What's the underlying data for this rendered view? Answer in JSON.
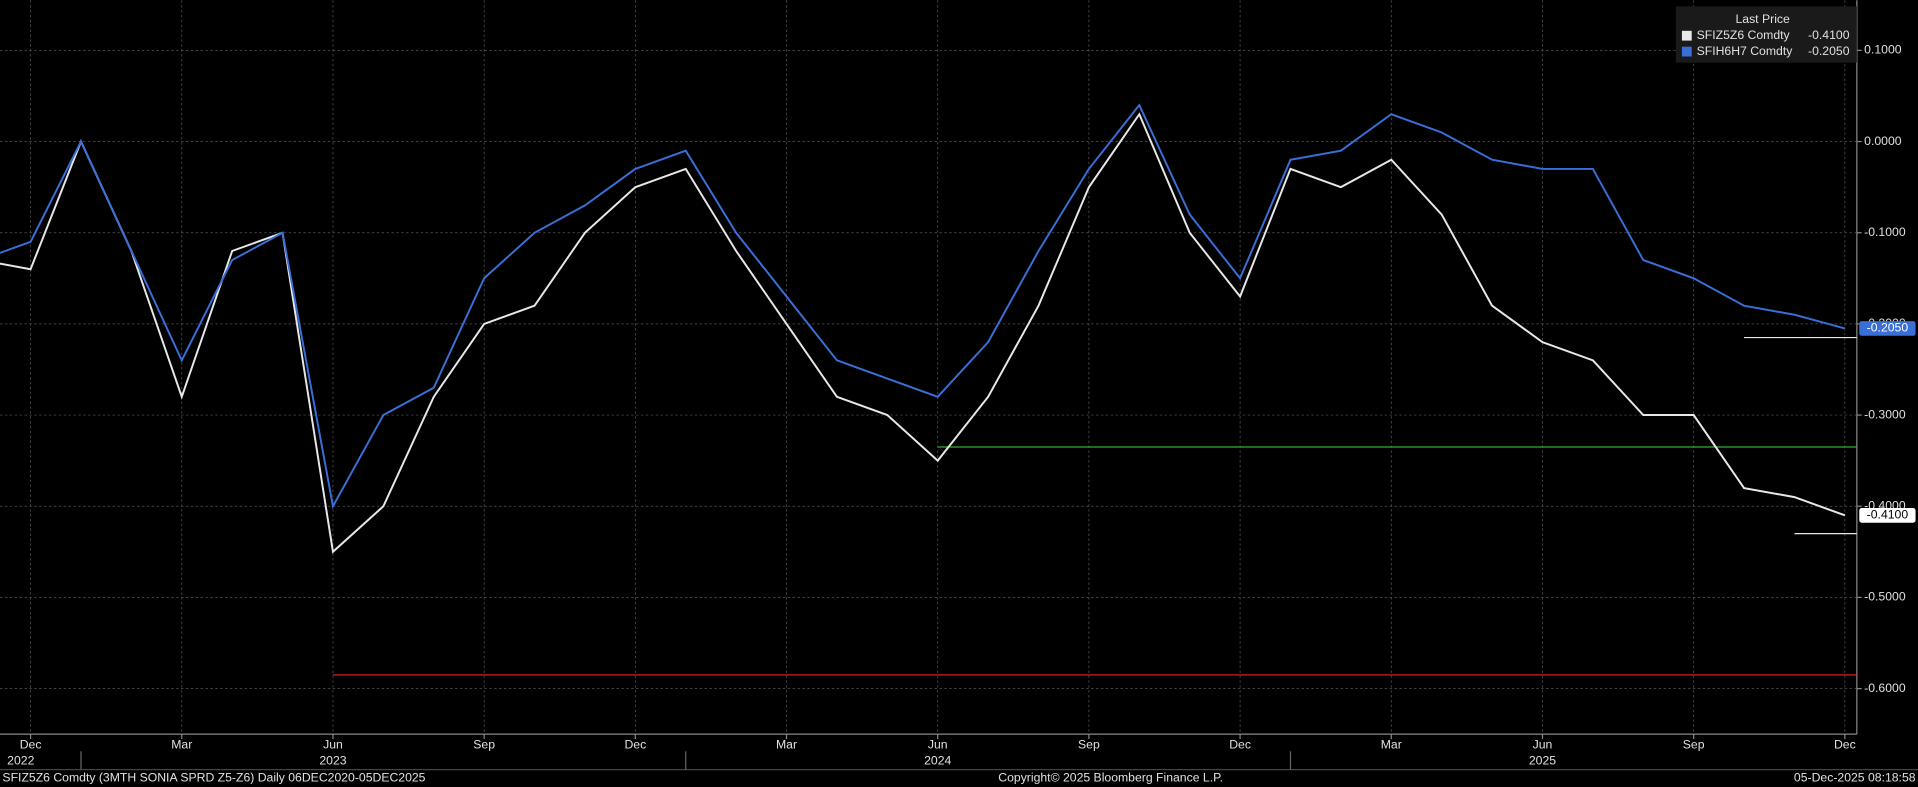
{
  "chart_data": {
    "type": "line",
    "x": [
      "2022-11",
      "2022-12",
      "2023-01",
      "2023-02",
      "2023-03",
      "2023-04",
      "2023-05",
      "2023-06",
      "2023-07",
      "2023-08",
      "2023-09",
      "2023-10",
      "2023-11",
      "2023-12",
      "2024-01",
      "2024-02",
      "2024-03",
      "2024-04",
      "2024-05",
      "2024-06",
      "2024-07",
      "2024-08",
      "2024-09",
      "2024-10",
      "2024-11",
      "2024-12",
      "2025-01",
      "2025-02",
      "2025-03",
      "2025-04",
      "2025-05",
      "2025-06",
      "2025-07",
      "2025-08",
      "2025-09",
      "2025-10",
      "2025-11",
      "2025-12"
    ],
    "series": [
      {
        "name": "SFIZ5Z6 Comdty",
        "color": "#e8e8e8",
        "last_value": -0.41,
        "last_label": "-0.4100",
        "values": [
          -0.13,
          -0.14,
          0.0,
          -0.12,
          -0.28,
          -0.12,
          -0.1,
          -0.45,
          -0.4,
          -0.28,
          -0.2,
          -0.18,
          -0.1,
          -0.05,
          -0.03,
          -0.12,
          -0.2,
          -0.28,
          -0.3,
          -0.35,
          -0.28,
          -0.18,
          -0.05,
          0.03,
          -0.1,
          -0.17,
          -0.03,
          -0.05,
          -0.02,
          -0.08,
          -0.18,
          -0.22,
          -0.24,
          -0.3,
          -0.3,
          -0.38,
          -0.39,
          -0.41
        ]
      },
      {
        "name": "SFIH6H7 Comdty",
        "color": "#3a6fd8",
        "last_value": -0.205,
        "last_label": "-0.2050",
        "values": [
          -0.13,
          -0.11,
          0.0,
          -0.12,
          -0.24,
          -0.13,
          -0.1,
          -0.4,
          -0.3,
          -0.27,
          -0.15,
          -0.1,
          -0.07,
          -0.03,
          -0.01,
          -0.1,
          -0.17,
          -0.24,
          -0.26,
          -0.28,
          -0.22,
          -0.12,
          -0.03,
          0.04,
          -0.08,
          -0.15,
          -0.02,
          -0.01,
          0.03,
          0.01,
          -0.02,
          -0.03,
          -0.03,
          -0.13,
          -0.15,
          -0.18,
          -0.19,
          -0.205
        ]
      }
    ],
    "legend_title": "Last Price",
    "ylim": [
      -0.65,
      0.155
    ],
    "yticks": [
      {
        "value": 0.1,
        "label": "0.1000"
      },
      {
        "value": 0.0,
        "label": "0.0000"
      },
      {
        "value": -0.1,
        "label": "-0.1000"
      },
      {
        "value": -0.2,
        "label": "-0.2000"
      },
      {
        "value": -0.3,
        "label": "-0.3000"
      },
      {
        "value": -0.4,
        "label": "-0.4000"
      },
      {
        "value": -0.5,
        "label": "-0.5000"
      },
      {
        "value": -0.6,
        "label": "-0.6000"
      }
    ],
    "xticks": [
      {
        "value": "2022-12",
        "label": "Dec"
      },
      {
        "value": "2023-03",
        "label": "Mar"
      },
      {
        "value": "2023-06",
        "label": "Jun"
      },
      {
        "value": "2023-09",
        "label": "Sep"
      },
      {
        "value": "2023-12",
        "label": "Dec"
      },
      {
        "value": "2024-03",
        "label": "Mar"
      },
      {
        "value": "2024-06",
        "label": "Jun"
      },
      {
        "value": "2024-09",
        "label": "Sep"
      },
      {
        "value": "2024-12",
        "label": "Dec"
      },
      {
        "value": "2025-03",
        "label": "Mar"
      },
      {
        "value": "2025-06",
        "label": "Jun"
      },
      {
        "value": "2025-09",
        "label": "Sep"
      },
      {
        "value": "2025-12",
        "label": "Dec"
      }
    ],
    "year_ticks": [
      {
        "value": "2022-12",
        "label": "2022"
      },
      {
        "value": "2023-06",
        "label": "2023"
      },
      {
        "value": "2024-06",
        "label": "2024"
      },
      {
        "value": "2025-06",
        "label": "2025"
      }
    ],
    "reference_lines": [
      {
        "value": -0.585,
        "color": "#d02020",
        "from": "2023-06"
      },
      {
        "value": -0.335,
        "color": "#30b030",
        "from": "2024-06"
      },
      {
        "value": -0.215,
        "color": "#e8e8e8",
        "from": "2025-10"
      },
      {
        "value": -0.43,
        "color": "#e8e8e8",
        "from": "2025-11"
      }
    ],
    "grid": true,
    "legend": "top-right",
    "footer_left": "SFIZ5Z6 Comdty (3MTH SONIA  SPRD Z5-Z6) Daily 06DEC2020-05DEC2025",
    "footer_center": "Copyright© 2025 Bloomberg Finance L.P.",
    "footer_right": "05-Dec-2025 08:18:58"
  }
}
